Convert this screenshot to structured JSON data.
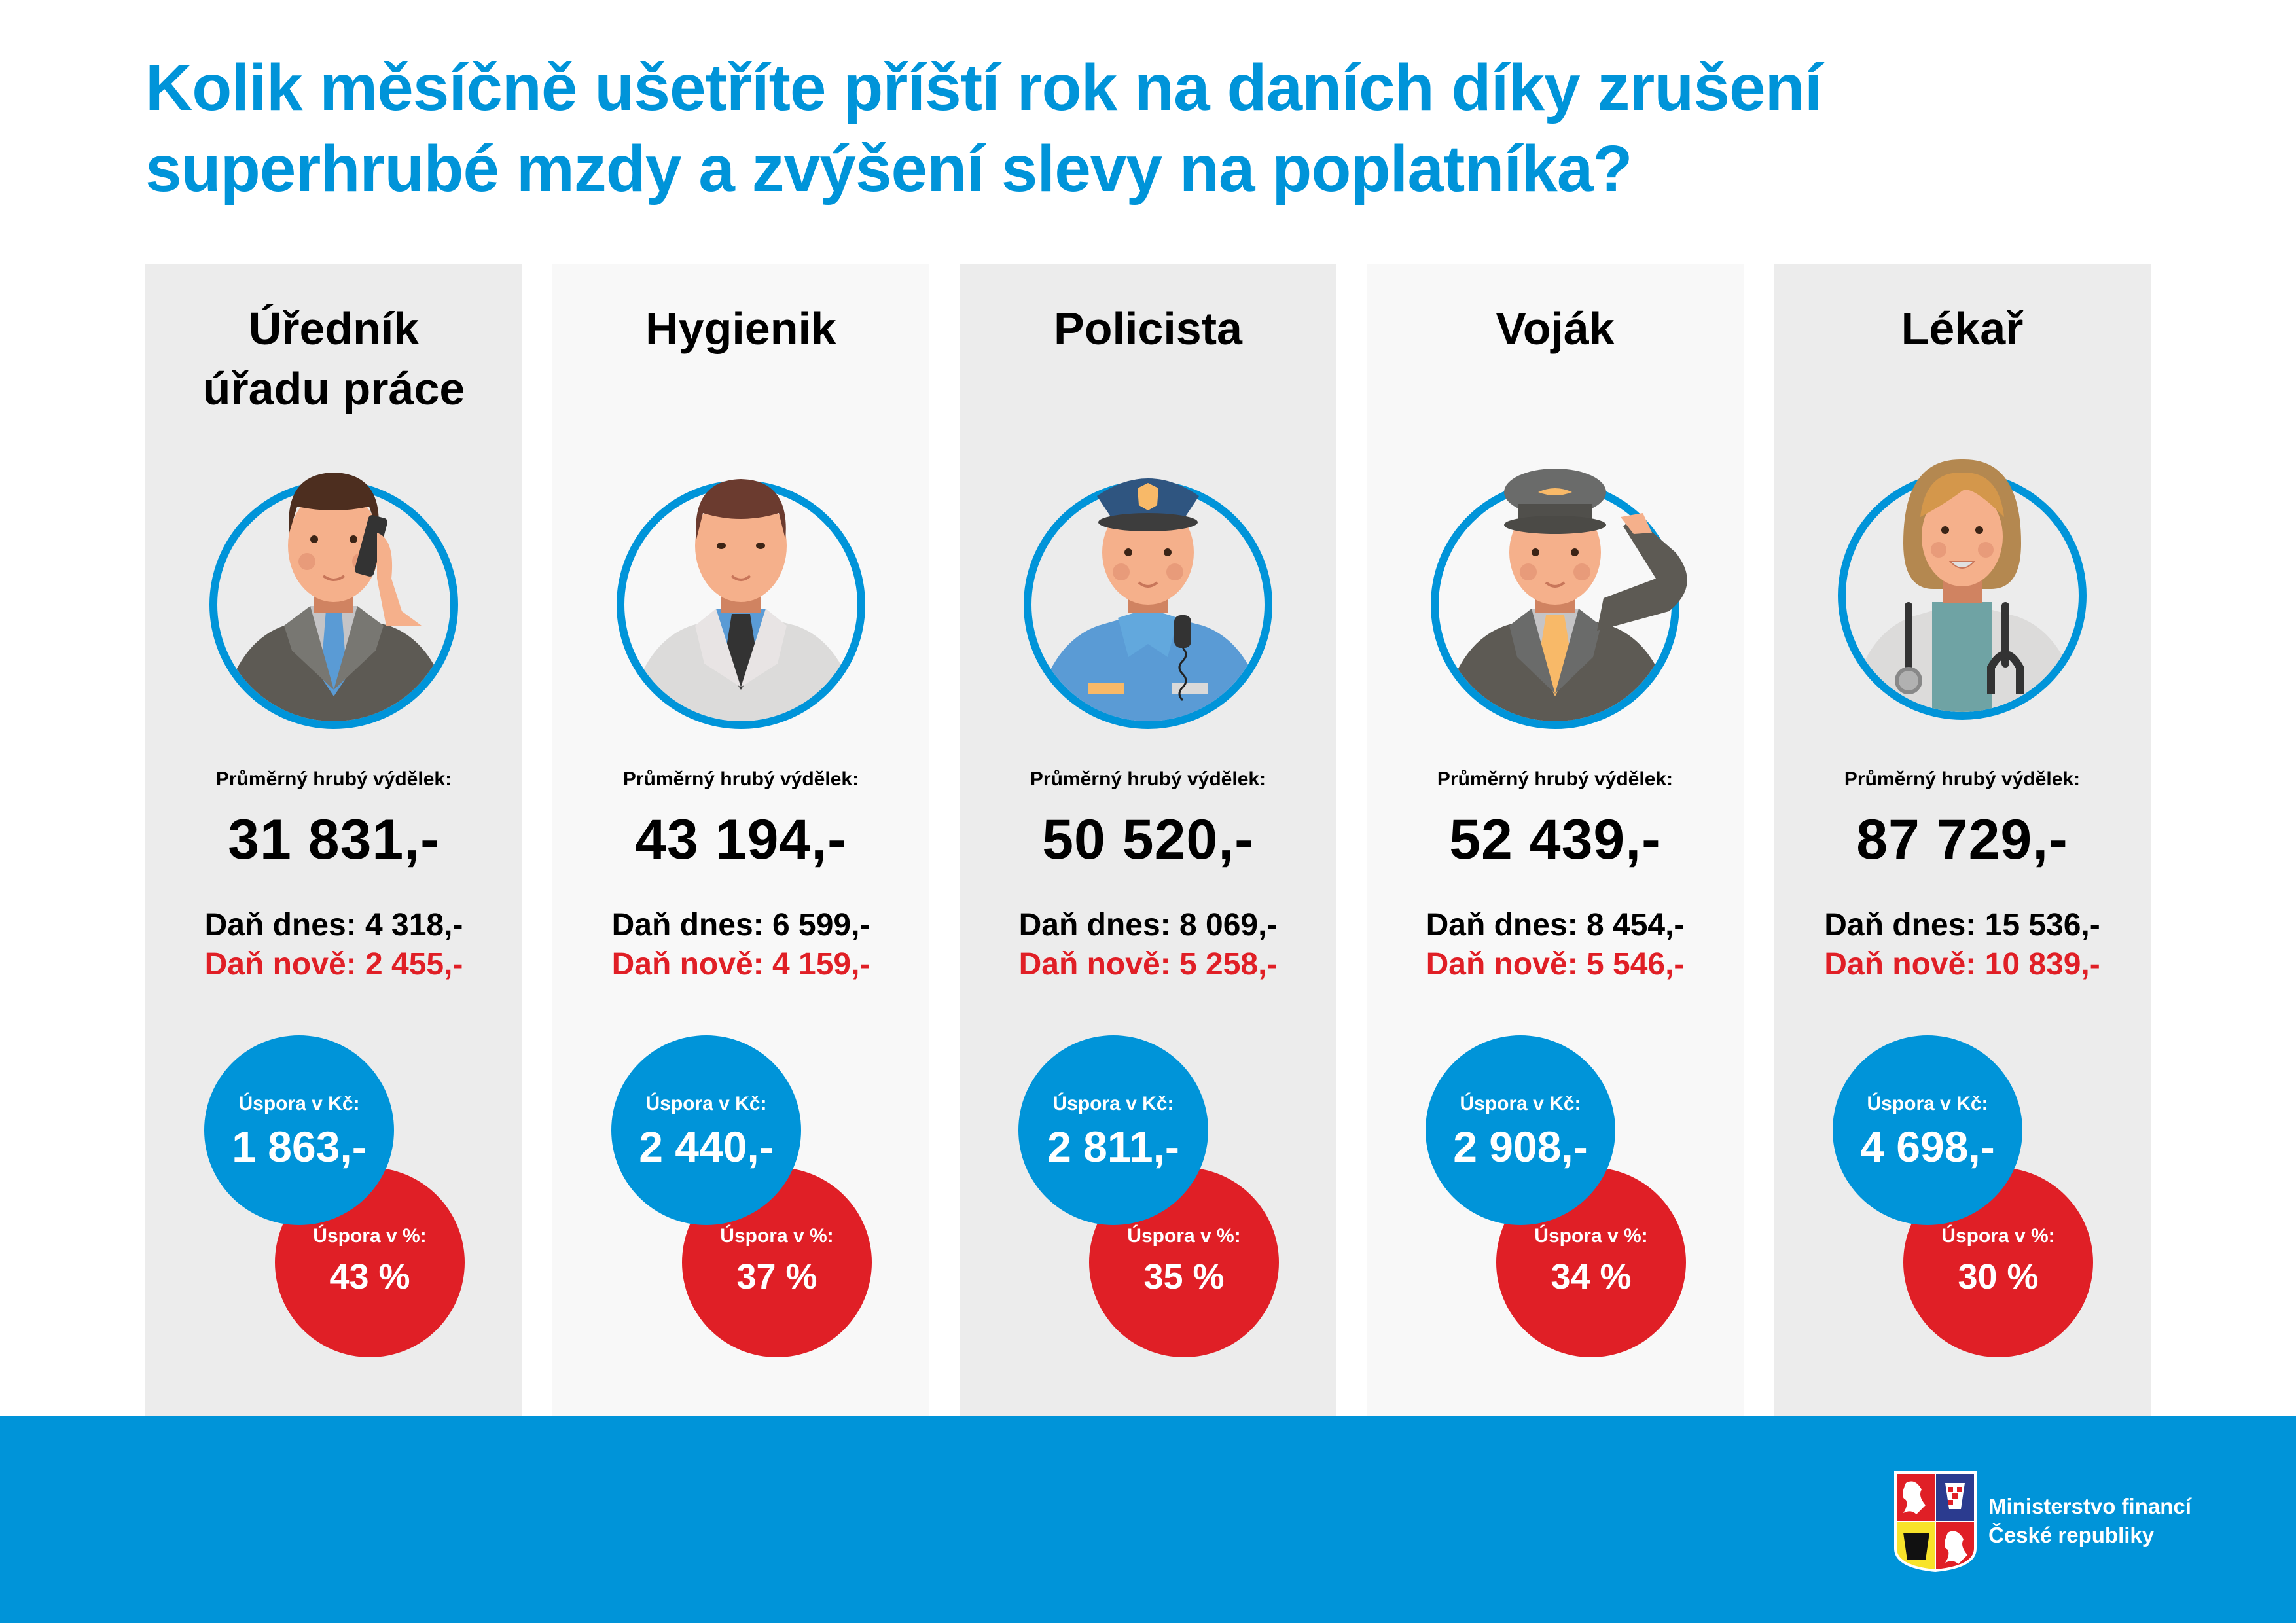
{
  "title": {
    "line1": "Kolik měsíčně ušetříte příští rok na daních díky zrušení",
    "line2": "superhrubé mzdy a zvýšení slevy na poplatníka?"
  },
  "labels": {
    "earnings": "Průměrný hrubý výdělek:",
    "savings_czk": "Úspora v Kč:",
    "savings_pct": "Úspora v %:"
  },
  "colors": {
    "accent_blue": "#0094d9",
    "accent_red": "#e01f26",
    "card_dark": "#ececec",
    "card_light": "#f8f8f8"
  },
  "cards": [
    {
      "job_line1": "Úředník",
      "job_line2": "úřadu práce",
      "portrait": "office-worker-phone-icon",
      "earnings": "31 831,-",
      "tax_now": "Daň dnes: 4 318,-",
      "tax_new": "Daň nově: 2 455,-",
      "savings_czk": "1 863,-",
      "savings_pct": "43 %"
    },
    {
      "job_line1": "Hygienik",
      "job_line2": "",
      "portrait": "hygienist-icon",
      "earnings": "43 194,-",
      "tax_now": "Daň dnes: 6 599,-",
      "tax_new": "Daň nově: 4 159,-",
      "savings_czk": "2 440,-",
      "savings_pct": "37 %"
    },
    {
      "job_line1": "Policista",
      "job_line2": "",
      "portrait": "police-officer-icon",
      "earnings": "50 520,-",
      "tax_now": "Daň dnes: 8 069,-",
      "tax_new": "Daň nově: 5 258,-",
      "savings_czk": "2 811,-",
      "savings_pct": "35 %"
    },
    {
      "job_line1": "Voják",
      "job_line2": "",
      "portrait": "soldier-saluting-icon",
      "earnings": "52 439,-",
      "tax_now": "Daň dnes: 8 454,-",
      "tax_new": "Daň nově: 5 546,-",
      "savings_czk": "2 908,-",
      "savings_pct": "34 %"
    },
    {
      "job_line1": "Lékař",
      "job_line2": "",
      "portrait": "doctor-icon",
      "earnings": "87 729,-",
      "tax_now": "Daň dnes: 15 536,-",
      "tax_new": "Daň nově: 10 839,-",
      "savings_czk": "4 698,-",
      "savings_pct": "30 %"
    }
  ],
  "footer": {
    "ministry_line1": "Ministerstvo financí",
    "ministry_line2": "České republiky",
    "logo": "czech-coat-of-arms-icon"
  }
}
